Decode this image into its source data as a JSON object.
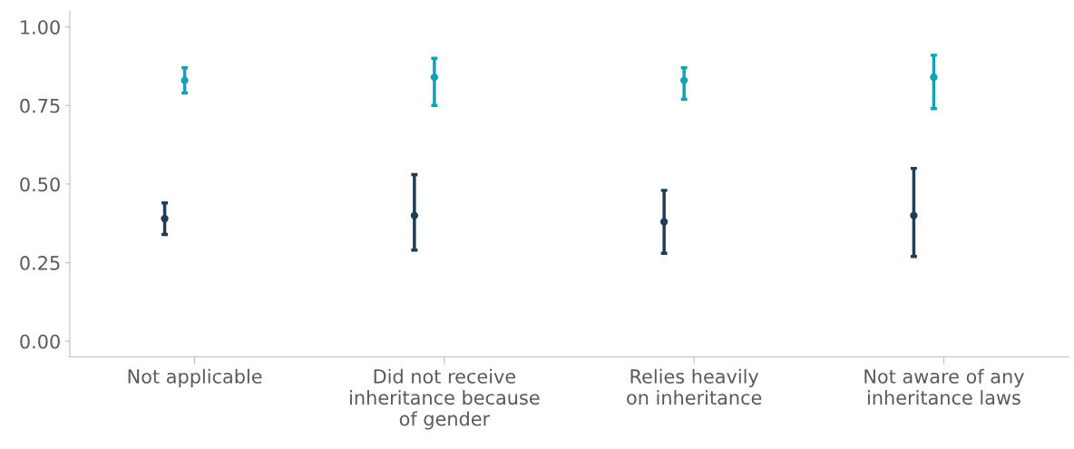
{
  "chart_data": {
    "type": "scatter",
    "categories": [
      "Not applicable",
      "Did not receive\ninheritance because\nof gender",
      "Relies heavily\non inheritance",
      "Not aware of any\ninheritance laws"
    ],
    "series": [
      {
        "color": "#1f3d56",
        "values": [
          0.39,
          0.4,
          0.38,
          0.4
        ],
        "errors": [
          [
            0.34,
            0.44
          ],
          [
            0.29,
            0.53
          ],
          [
            0.28,
            0.48
          ],
          [
            0.27,
            0.55
          ]
        ]
      },
      {
        "color": "#0fa3b5",
        "values": [
          0.83,
          0.84,
          0.83,
          0.84
        ],
        "errors": [
          [
            0.79,
            0.87
          ],
          [
            0.75,
            0.9
          ],
          [
            0.77,
            0.87
          ],
          [
            0.74,
            0.91
          ]
        ]
      }
    ],
    "ylim": [
      -0.05,
      1.05
    ],
    "yticks": [
      {
        "value": 0,
        "label": "0.00"
      },
      {
        "value": 0.25,
        "label": "0.25"
      },
      {
        "value": 0.5,
        "label": "0.50"
      },
      {
        "value": 0.75,
        "label": "0.75"
      },
      {
        "value": 1,
        "label": "1.00"
      }
    ],
    "grid": false,
    "marker": "circle"
  }
}
